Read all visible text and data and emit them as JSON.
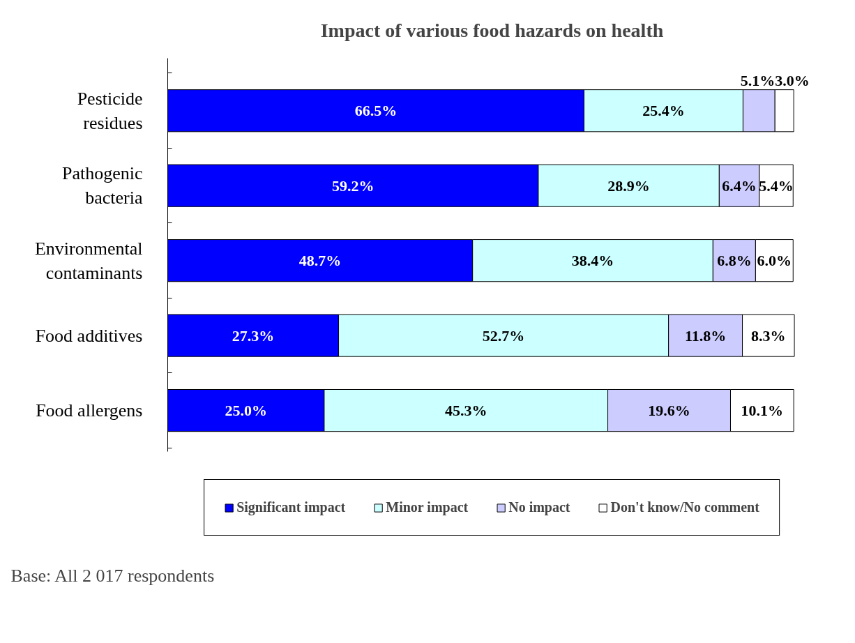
{
  "chart_data": {
    "type": "bar",
    "orientation": "horizontal",
    "stacked": true,
    "title": "Impact of various food hazards on health",
    "categories": [
      "Pesticide residues",
      "Pathogenic bacteria",
      "Environmental contaminants",
      "Food additives",
      "Food allergens"
    ],
    "series": [
      {
        "name": "Significant impact",
        "color": "#0000ff",
        "values": [
          66.5,
          59.2,
          48.7,
          27.3,
          25.0
        ],
        "value_labels": [
          "66.5%",
          "59.2%",
          "48.7%",
          "27.3%",
          "25.0%"
        ]
      },
      {
        "name": "Minor impact",
        "color": "#ccffff",
        "values": [
          25.4,
          28.9,
          38.4,
          52.7,
          45.3
        ],
        "value_labels": [
          "25.4%",
          "28.9%",
          "38.4%",
          "52.7%",
          "45.3%"
        ]
      },
      {
        "name": "No impact",
        "color": "#ccccff",
        "values": [
          5.1,
          6.4,
          6.8,
          11.8,
          19.6
        ],
        "value_labels": [
          "5.1%",
          "6.4%",
          "6.8%",
          "11.8%",
          "19.6%"
        ]
      },
      {
        "name": "Don't know/No comment",
        "color": "#ffffff",
        "values": [
          3.0,
          5.4,
          6.0,
          8.3,
          10.1
        ],
        "value_labels": [
          "3.0%",
          "5.4%",
          "6.0%",
          "8.3%",
          "10.1%"
        ]
      }
    ],
    "legend": "bottom",
    "grid": false,
    "annotations": [
      "Base: All 2 017 respondents"
    ]
  }
}
